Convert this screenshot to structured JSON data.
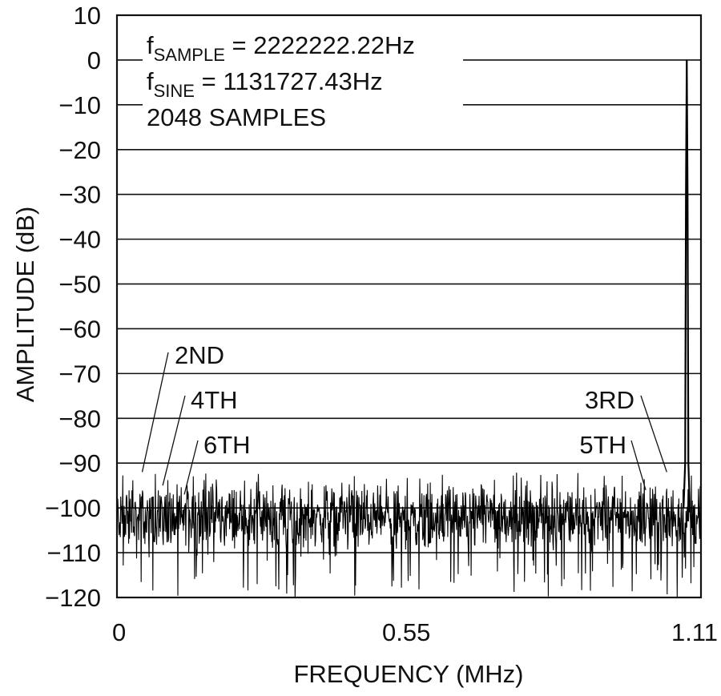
{
  "chart_data": {
    "type": "line",
    "xlabel": "FREQUENCY (MHz)",
    "ylabel": "AMPLITUDE (dB)",
    "xlim": [
      0,
      1.11
    ],
    "ylim": [
      -120,
      10
    ],
    "x_ticks": [
      "0",
      "0.55",
      "1.11"
    ],
    "x_tick_values": [
      0,
      0.55,
      1.11
    ],
    "y_ticks": [
      "10",
      "0",
      "−10",
      "−20",
      "−30",
      "−40",
      "−50",
      "−60",
      "−70",
      "−80",
      "−90",
      "−100",
      "−110",
      "−120"
    ],
    "y_tick_values": [
      10,
      0,
      -10,
      -20,
      -30,
      -40,
      -50,
      -60,
      -70,
      -80,
      -90,
      -100,
      -110,
      -120
    ],
    "grid": true,
    "annotations": {
      "fsample": {
        "prefix": "f",
        "sub": "SAMPLE",
        "text": " = 2222222.22Hz"
      },
      "fsine": {
        "prefix": "f",
        "sub": "SINE",
        "text": " = 1131727.43Hz"
      },
      "samples": "2048 SAMPLES"
    },
    "harmonics": [
      {
        "label": "2ND",
        "x": 0.048,
        "y": -92
      },
      {
        "label": "4TH",
        "x": 0.087,
        "y": -95
      },
      {
        "label": "6TH",
        "x": 0.128,
        "y": -97
      },
      {
        "label": "3RD",
        "x": 1.045,
        "y": -92
      },
      {
        "label": "5TH",
        "x": 1.005,
        "y": -96
      }
    ],
    "series": [
      {
        "fundamental": {
          "x": 1.083,
          "y": 0
        },
        "noise_floor_db": -102,
        "noise_min_db": -120,
        "noise_max_db": -93,
        "samples": 2048
      }
    ]
  }
}
